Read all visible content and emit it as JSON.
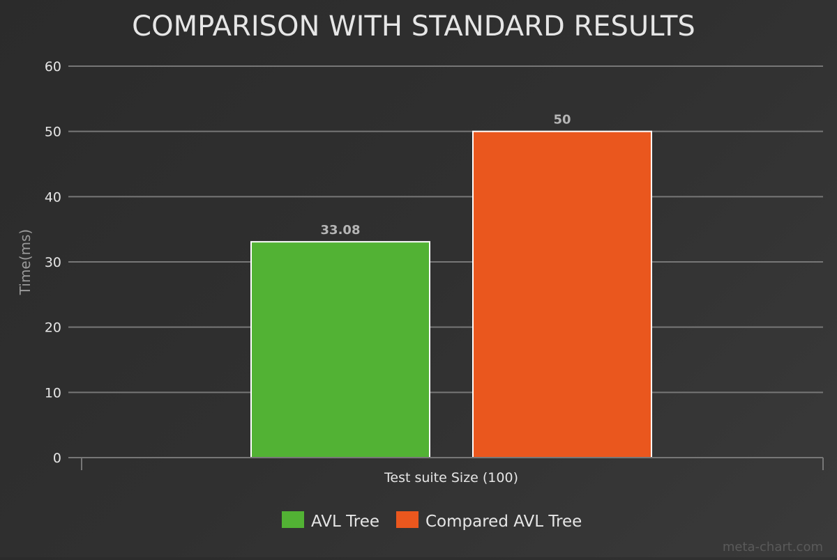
{
  "chart_data": {
    "type": "bar",
    "title": "COMPARISON WITH STANDARD RESULTS",
    "xlabel": "Test suite Size (100)",
    "ylabel": "Time(ms)",
    "categories": [
      "Test suite Size (100)"
    ],
    "series": [
      {
        "name": "AVL Tree",
        "values": [
          33.08
        ],
        "color": "#52b234"
      },
      {
        "name": "Compared AVL Tree",
        "values": [
          50
        ],
        "color": "#ea571e"
      }
    ],
    "ylim": [
      0,
      60
    ],
    "yticks": [
      0,
      10,
      20,
      30,
      40,
      50,
      60
    ],
    "grid": true,
    "legend_position": "bottom-center",
    "watermark": "meta-chart.com"
  },
  "colors": {
    "background": "#2e2e2e",
    "grid": "#777777",
    "text": "#e6e6e6",
    "muted_text": "#9a9a9a",
    "bar_border": "#ffffff"
  }
}
